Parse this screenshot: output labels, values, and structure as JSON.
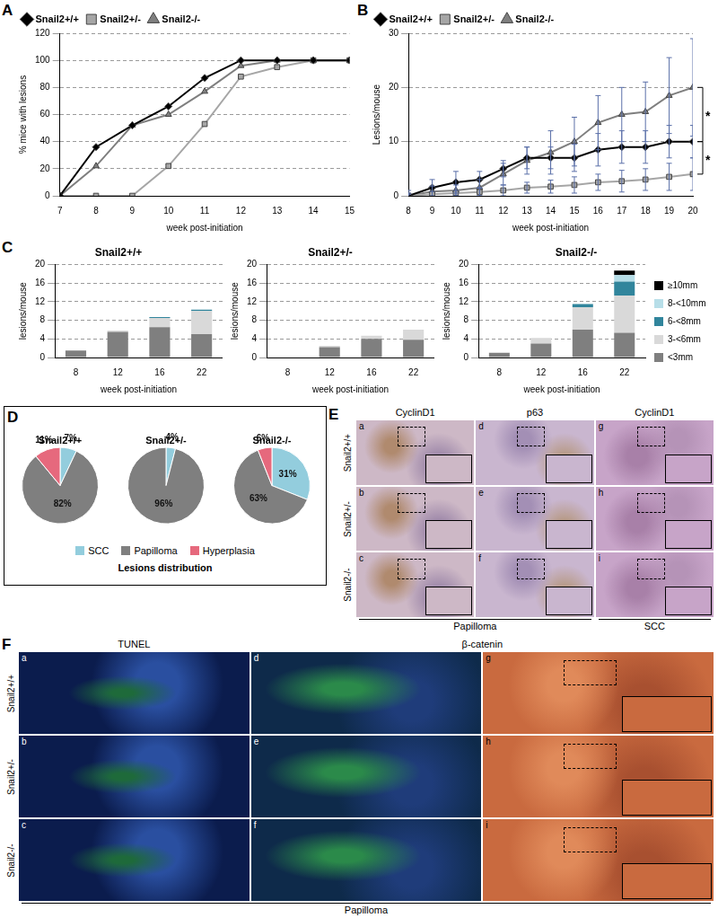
{
  "panel_letters": [
    "A",
    "B",
    "C",
    "D",
    "E",
    "F"
  ],
  "chart_data": [
    {
      "type": "line",
      "x": [
        7,
        8,
        9,
        10,
        11,
        12,
        13,
        14,
        15
      ],
      "xlim": [
        7,
        15
      ],
      "xticks": [
        7,
        8,
        9,
        10,
        11,
        12,
        13,
        14,
        15
      ],
      "ylim": [
        0,
        120
      ],
      "yticks": [
        0,
        20,
        40,
        60,
        80,
        100,
        120
      ],
      "x_label": "week post-initiation",
      "y_label": "% mice with lesions",
      "grid": true,
      "legend": "top-left",
      "series": [
        {
          "name": "Snail2+/+",
          "color": "#000000",
          "marker": "diamond",
          "values": [
            0,
            36,
            52,
            66,
            87,
            100,
            100,
            100,
            100
          ]
        },
        {
          "name": "Snail2+/-",
          "color": "#a6a6a6",
          "marker": "square",
          "values": [
            0,
            0,
            0,
            22,
            53,
            88,
            95,
            100,
            100
          ]
        },
        {
          "name": "Snail2-/-",
          "color": "#7f7f7f",
          "marker": "triangle",
          "values": [
            0,
            22,
            52,
            60,
            77,
            96,
            100,
            100,
            100
          ]
        }
      ]
    },
    {
      "type": "line",
      "x": [
        8,
        9,
        10,
        11,
        12,
        13,
        14,
        15,
        16,
        17,
        18,
        19,
        20
      ],
      "xlim": [
        8,
        20
      ],
      "xticks": [
        8,
        9,
        10,
        11,
        12,
        13,
        14,
        15,
        16,
        17,
        18,
        19,
        20
      ],
      "ylim": [
        0,
        30
      ],
      "yticks": [
        0,
        10,
        20,
        30
      ],
      "x_label": "week post-initiation",
      "y_label": "Lesions/mouse",
      "grid": true,
      "legend": "top-left",
      "series": [
        {
          "name": "Snail2+/+",
          "color": "#000000",
          "marker": "diamond",
          "values": [
            0,
            1.5,
            2.5,
            3,
            5,
            7,
            7,
            7,
            8.5,
            9,
            9,
            10,
            10
          ],
          "errors": [
            1,
            1.5,
            2,
            1.5,
            1.5,
            2,
            2,
            2.5,
            3,
            3,
            3,
            3,
            3
          ]
        },
        {
          "name": "Snail2+/-",
          "color": "#a6a6a6",
          "marker": "square",
          "values": [
            0,
            0.3,
            0.5,
            0.7,
            1,
            1.5,
            1.7,
            2,
            2.5,
            2.7,
            3,
            3.5,
            4
          ],
          "errors": [
            0.3,
            0.5,
            0.5,
            0.7,
            1,
            1,
            1.2,
            1.5,
            1.5,
            2,
            2,
            2.5,
            3
          ]
        },
        {
          "name": "Snail2-/-",
          "color": "#7f7f7f",
          "marker": "triangle",
          "values": [
            0,
            0.8,
            1,
            1.5,
            4,
            6.5,
            8,
            10,
            13.5,
            15,
            15.5,
            18.5,
            20
          ],
          "errors": [
            0.5,
            1,
            1,
            1.5,
            2,
            2.5,
            4,
            4.5,
            5,
            5,
            5.5,
            7,
            9
          ]
        }
      ],
      "annotations": [
        {
          "text": "*",
          "between": [
            "Snail2-/-",
            "Snail2+/+"
          ]
        },
        {
          "text": "*",
          "between": [
            "Snail2+/+",
            "Snail2+/-"
          ]
        }
      ]
    },
    {
      "type": "bar",
      "title": "Snail2+/+",
      "stacked": true,
      "categories": [
        "8",
        "12",
        "16",
        "22"
      ],
      "ylim": [
        0,
        20
      ],
      "yticks": [
        0,
        4,
        8,
        12,
        16,
        20
      ],
      "x_label": "week post-initiation",
      "y_label": "lesions/mouse",
      "grid": true,
      "series": [
        {
          "name": "<3mm",
          "color": "#7f7f7f",
          "values": [
            1.5,
            5.5,
            6.5,
            5
          ]
        },
        {
          "name": "3-<6mm",
          "color": "#d9d9d9",
          "values": [
            0,
            0.3,
            2,
            5
          ]
        },
        {
          "name": "6-<8mm",
          "color": "#31859c",
          "values": [
            0,
            0,
            0.2,
            0.3
          ]
        }
      ]
    },
    {
      "type": "bar",
      "title": "Snail2+/-",
      "stacked": true,
      "categories": [
        "8",
        "12",
        "16",
        "22"
      ],
      "ylim": [
        0,
        20
      ],
      "yticks": [
        0,
        4,
        8,
        12,
        16,
        20
      ],
      "x_label": "week post-initiation",
      "y_label": "lesions/mouse",
      "grid": true,
      "series": [
        {
          "name": "<3mm",
          "color": "#7f7f7f",
          "values": [
            0,
            2.2,
            4,
            3.8
          ]
        },
        {
          "name": "3-<6mm",
          "color": "#d9d9d9",
          "values": [
            0,
            0.3,
            0.7,
            2.2
          ]
        }
      ]
    },
    {
      "type": "bar",
      "title": "Snail2-/-",
      "stacked": true,
      "categories": [
        "8",
        "12",
        "16",
        "22"
      ],
      "ylim": [
        0,
        20
      ],
      "yticks": [
        0,
        4,
        8,
        12,
        16,
        20
      ],
      "x_label": "week post-initiation",
      "y_label": "lesions/mouse",
      "grid": true,
      "legend": "right",
      "series": [
        {
          "name": "<3mm",
          "color": "#7f7f7f",
          "values": [
            1,
            3,
            6,
            5.3
          ]
        },
        {
          "name": "3-<6mm",
          "color": "#d9d9d9",
          "values": [
            0,
            1.2,
            4.8,
            8
          ]
        },
        {
          "name": "6-<8mm",
          "color": "#31859c",
          "values": [
            0,
            0,
            0.7,
            3
          ]
        },
        {
          "name": "8-<10mm",
          "color": "#b7dee8",
          "values": [
            0,
            0,
            0,
            1.4
          ]
        },
        {
          "name": "≥10mm",
          "color": "#000000",
          "values": [
            0,
            0,
            0,
            1
          ]
        }
      ]
    },
    {
      "type": "pie",
      "title": "Snail2+/+",
      "categories": [
        "SCC",
        "Papilloma",
        "Hyperplasia"
      ],
      "values": [
        7,
        82,
        11
      ],
      "value_labels": [
        "7%",
        "82%",
        "11%"
      ],
      "colors": [
        "#93cddd",
        "#7f7f7f",
        "#e6697d"
      ],
      "data_labels": true
    },
    {
      "type": "pie",
      "title": "Snail2+/-",
      "categories": [
        "SCC",
        "Papilloma"
      ],
      "values": [
        4,
        96
      ],
      "value_labels": [
        "4%",
        "96%"
      ],
      "colors": [
        "#93cddd",
        "#7f7f7f"
      ],
      "data_labels": true
    },
    {
      "type": "pie",
      "title": "Snail2-/-",
      "categories": [
        "SCC",
        "Papilloma",
        "Hyperplasia"
      ],
      "values": [
        31,
        63,
        6
      ],
      "value_labels": [
        "31%",
        "63%",
        "6%"
      ],
      "colors": [
        "#93cddd",
        "#7f7f7f",
        "#e6697d"
      ],
      "data_labels": true
    }
  ],
  "pie_caption": "Lesions distribution",
  "micrographs": {
    "E": {
      "headers": [
        {
          "label": "CyclinD1",
          "span": 1
        },
        {
          "label": "p63",
          "span": 1
        },
        {
          "label": "CyclinD1",
          "span": 1
        }
      ],
      "rows": [
        "Snail2+/+",
        "Snail2+/-",
        "Snail2-/-"
      ],
      "cells": [
        [
          "a",
          "d",
          "g"
        ],
        [
          "b",
          "e",
          "h"
        ],
        [
          "c",
          "f",
          "i"
        ]
      ],
      "footers": [
        {
          "label": "Papilloma",
          "span": 2
        },
        {
          "label": "SCC",
          "span": 1
        }
      ]
    },
    "F": {
      "headers": [
        {
          "label": "TUNEL",
          "span": 1
        },
        {
          "label": "β-catenin",
          "span": 2
        }
      ],
      "rows": [
        "Snail2+/+",
        "Snail2+/-",
        "Snail2-/-"
      ],
      "cells": [
        [
          "a",
          "d",
          "g"
        ],
        [
          "b",
          "e",
          "h"
        ],
        [
          "c",
          "f",
          "i"
        ]
      ],
      "footers": [
        {
          "label": "Papilloma",
          "span": 3
        }
      ]
    }
  }
}
